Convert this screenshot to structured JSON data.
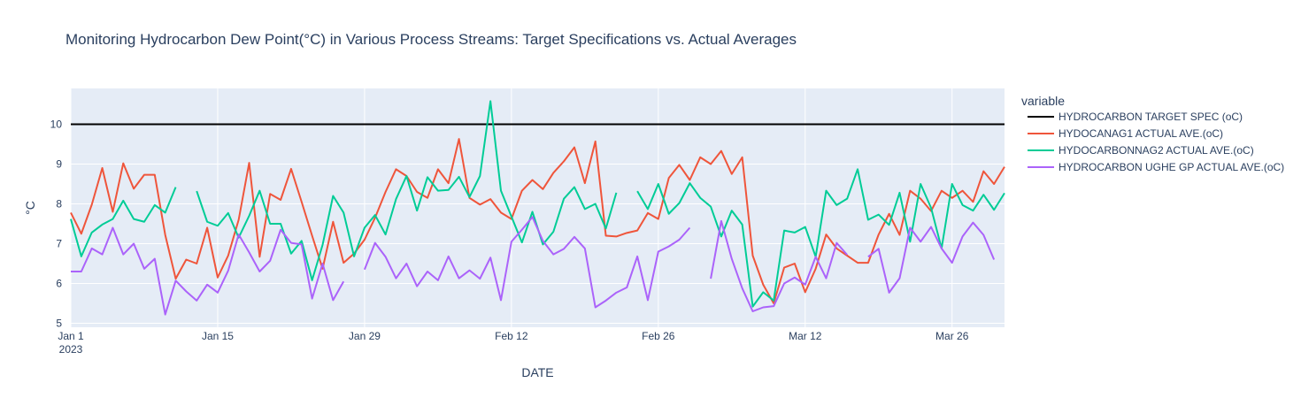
{
  "chart_data": {
    "type": "line",
    "title": "Monitoring Hydrocarbon Dew Point(°C) in Various Process Streams: Target Specifications vs. Actual Averages",
    "xlabel": "DATE",
    "ylabel": "°C",
    "ylim": [
      4.9,
      10.9
    ],
    "xlim": [
      "2023-01-01",
      "2023-03-31"
    ],
    "y_ticks": [
      5,
      6,
      7,
      8,
      9,
      10
    ],
    "x_ticks": [
      {
        "date": "2023-01-01",
        "label": "Jan 1",
        "sublabel": "2023"
      },
      {
        "date": "2023-01-15",
        "label": "Jan 15",
        "sublabel": ""
      },
      {
        "date": "2023-01-29",
        "label": "Jan 29",
        "sublabel": ""
      },
      {
        "date": "2023-02-12",
        "label": "Feb 12",
        "sublabel": ""
      },
      {
        "date": "2023-02-26",
        "label": "Feb 26",
        "sublabel": ""
      },
      {
        "date": "2023-03-12",
        "label": "Mar 12",
        "sublabel": ""
      },
      {
        "date": "2023-03-26",
        "label": "Mar 26",
        "sublabel": ""
      }
    ],
    "grid": true,
    "legend_title": "variable",
    "legend_position": "right",
    "x_dates": [
      "2023-01-01",
      "2023-01-02",
      "2023-01-03",
      "2023-01-04",
      "2023-01-05",
      "2023-01-06",
      "2023-01-07",
      "2023-01-08",
      "2023-01-09",
      "2023-01-10",
      "2023-01-11",
      "2023-01-12",
      "2023-01-13",
      "2023-01-14",
      "2023-01-15",
      "2023-01-16",
      "2023-01-17",
      "2023-01-18",
      "2023-01-19",
      "2023-01-20",
      "2023-01-21",
      "2023-01-22",
      "2023-01-23",
      "2023-01-24",
      "2023-01-25",
      "2023-01-26",
      "2023-01-27",
      "2023-01-28",
      "2023-01-29",
      "2023-01-30",
      "2023-01-31",
      "2023-02-01",
      "2023-02-02",
      "2023-02-03",
      "2023-02-04",
      "2023-02-05",
      "2023-02-06",
      "2023-02-07",
      "2023-02-08",
      "2023-02-09",
      "2023-02-10",
      "2023-02-11",
      "2023-02-12",
      "2023-02-13",
      "2023-02-14",
      "2023-02-15",
      "2023-02-16",
      "2023-02-17",
      "2023-02-18",
      "2023-02-19",
      "2023-02-20",
      "2023-02-21",
      "2023-02-22",
      "2023-02-23",
      "2023-02-24",
      "2023-02-25",
      "2023-02-26",
      "2023-02-27",
      "2023-02-28",
      "2023-03-01",
      "2023-03-02",
      "2023-03-03",
      "2023-03-04",
      "2023-03-05",
      "2023-03-06",
      "2023-03-07",
      "2023-03-08",
      "2023-03-09",
      "2023-03-10",
      "2023-03-11",
      "2023-03-12",
      "2023-03-13",
      "2023-03-14",
      "2023-03-15",
      "2023-03-16",
      "2023-03-17",
      "2023-03-18",
      "2023-03-19",
      "2023-03-20",
      "2023-03-21",
      "2023-03-22",
      "2023-03-23",
      "2023-03-24",
      "2023-03-25",
      "2023-03-26",
      "2023-03-27",
      "2023-03-28",
      "2023-03-29",
      "2023-03-30",
      "2023-03-31"
    ],
    "series": [
      {
        "name": "HYDROCARBON TARGET SPEC (oC)",
        "color": "#000000",
        "values": [
          10,
          10,
          10,
          10,
          10,
          10,
          10,
          10,
          10,
          10,
          10,
          10,
          10,
          10,
          10,
          10,
          10,
          10,
          10,
          10,
          10,
          10,
          10,
          10,
          10,
          10,
          10,
          10,
          10,
          10,
          10,
          10,
          10,
          10,
          10,
          10,
          10,
          10,
          10,
          10,
          10,
          10,
          10,
          10,
          10,
          10,
          10,
          10,
          10,
          10,
          10,
          10,
          10,
          10,
          10,
          10,
          10,
          10,
          10,
          10,
          10,
          10,
          10,
          10,
          10,
          10,
          10,
          10,
          10,
          10,
          10,
          10,
          10,
          10,
          10,
          10,
          10,
          10,
          10,
          10,
          10,
          10,
          10,
          10,
          10,
          10,
          10,
          10,
          10,
          10
        ]
      },
      {
        "name": "HYDOCANAG1 ACTUAL AVE.(oC)",
        "color": "#EF553B",
        "values": [
          7.78,
          7.25,
          7.98,
          8.9,
          7.8,
          9.02,
          8.38,
          8.73,
          8.73,
          7.22,
          6.12,
          6.6,
          6.5,
          7.4,
          6.15,
          6.7,
          7.6,
          9.03,
          6.67,
          8.25,
          8.1,
          8.88,
          8.05,
          7.2,
          6.37,
          7.55,
          6.52,
          6.75,
          7.1,
          7.65,
          8.3,
          8.87,
          8.7,
          8.3,
          8.15,
          8.87,
          8.52,
          9.63,
          8.15,
          7.98,
          8.12,
          7.78,
          7.62,
          8.33,
          8.6,
          8.37,
          8.78,
          9.07,
          9.42,
          8.52,
          9.57,
          7.2,
          7.18,
          7.27,
          7.33,
          7.77,
          7.62,
          8.65,
          8.98,
          8.6,
          9.17,
          9.0,
          9.33,
          8.75,
          9.17,
          6.7,
          5.97,
          5.5,
          6.4,
          6.5,
          5.78,
          6.37,
          7.23,
          6.88,
          6.7,
          6.52,
          6.52,
          7.23,
          7.75,
          7.22,
          8.33,
          8.13,
          7.82,
          8.33,
          8.15,
          8.33,
          8.05,
          8.82,
          8.5,
          8.93
        ]
      },
      {
        "name": "HYDOCARBONNAG2 ACTUAL AVE.(oC)",
        "color": "#00CC96",
        "values": [
          7.62,
          6.68,
          7.28,
          7.48,
          7.62,
          8.08,
          7.62,
          7.55,
          7.97,
          7.78,
          8.42,
          null,
          8.32,
          7.55,
          7.45,
          7.77,
          7.15,
          7.7,
          8.33,
          7.5,
          7.5,
          6.75,
          7.07,
          6.08,
          6.97,
          8.2,
          7.78,
          6.68,
          7.4,
          7.72,
          7.23,
          8.12,
          8.7,
          7.83,
          8.67,
          8.33,
          8.35,
          8.68,
          8.17,
          8.7,
          10.58,
          8.33,
          7.68,
          7.03,
          7.8,
          6.98,
          7.3,
          8.13,
          8.42,
          7.87,
          8.0,
          7.38,
          8.28,
          null,
          8.32,
          7.87,
          8.5,
          7.75,
          8.02,
          8.52,
          8.15,
          7.93,
          7.18,
          7.83,
          7.48,
          5.42,
          5.78,
          5.57,
          7.33,
          7.28,
          7.42,
          6.67,
          8.33,
          7.97,
          8.13,
          8.87,
          7.6,
          7.73,
          7.47,
          8.28,
          7.05,
          8.5,
          7.9,
          6.88,
          8.5,
          7.97,
          7.83,
          8.23,
          7.85,
          8.27
        ]
      },
      {
        "name": "HYDROCARBON UGHE GP ACTUAL AVE.(oC)",
        "color": "#AB63FA",
        "values": [
          6.3,
          6.3,
          6.88,
          6.73,
          7.4,
          6.73,
          7.0,
          6.37,
          6.62,
          5.22,
          6.07,
          5.8,
          5.57,
          5.97,
          5.77,
          6.32,
          7.23,
          6.78,
          6.3,
          6.57,
          7.35,
          7.02,
          6.98,
          5.62,
          6.5,
          5.58,
          6.05,
          null,
          6.35,
          7.02,
          6.67,
          6.13,
          6.5,
          5.93,
          6.3,
          6.08,
          6.68,
          6.13,
          6.33,
          6.12,
          6.65,
          5.58,
          7.05,
          7.35,
          7.67,
          7.07,
          6.73,
          6.87,
          7.17,
          6.88,
          5.4,
          5.57,
          5.77,
          5.9,
          6.68,
          5.58,
          6.8,
          6.93,
          7.1,
          7.4,
          null,
          6.12,
          7.57,
          6.62,
          5.88,
          5.3,
          5.4,
          5.43,
          6.0,
          6.15,
          5.97,
          6.67,
          6.13,
          7.02,
          6.72,
          null,
          6.67,
          6.87,
          5.77,
          6.13,
          7.4,
          7.05,
          7.42,
          6.88,
          6.52,
          7.18,
          7.53,
          7.22,
          6.6,
          null
        ]
      }
    ]
  }
}
